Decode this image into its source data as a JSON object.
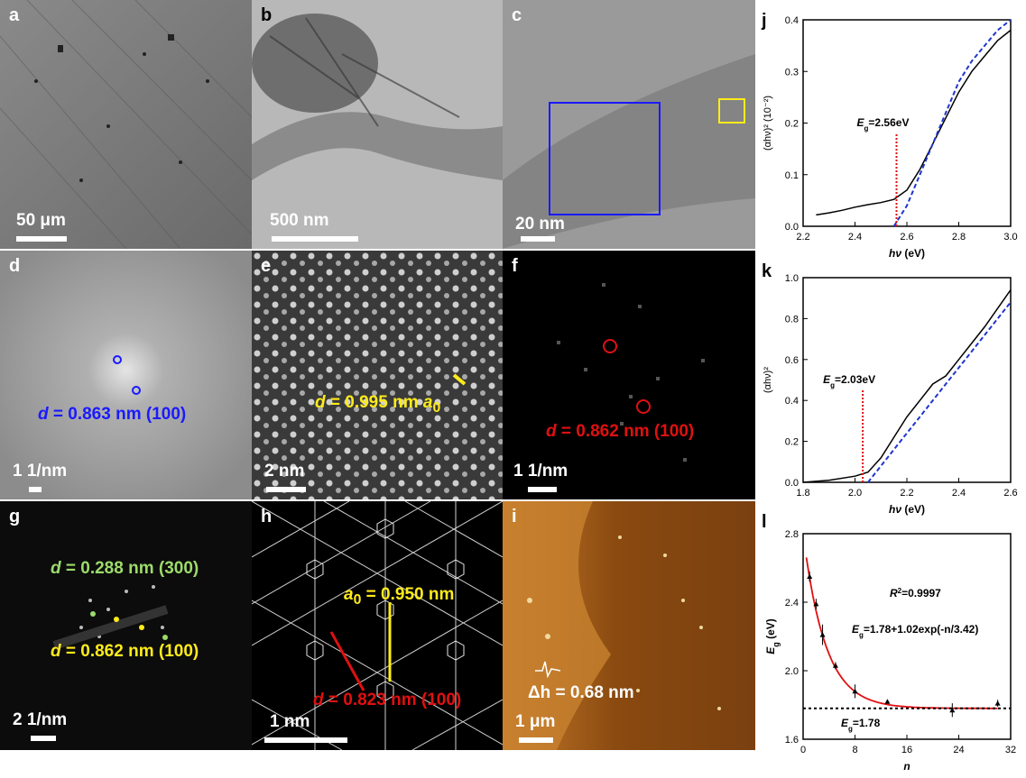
{
  "colors": {
    "blue": "#1a1aff",
    "yellow": "#ffeb1a",
    "red": "#e01010",
    "green": "#9ddb6a",
    "fit_blue": "#1f35d0",
    "fit_red": "#e01010"
  },
  "panels": {
    "a": {
      "label": "a",
      "scale": "50 μm"
    },
    "b": {
      "label": "b",
      "scale": "500 nm"
    },
    "c": {
      "label": "c",
      "scale": "20 nm"
    },
    "d": {
      "label": "d",
      "scale": "1  1/nm",
      "d_sym": "d",
      "d_val": " = 0.863 nm (100)"
    },
    "e": {
      "label": "e",
      "scale": "2 nm",
      "d_sym": "d",
      "d_val": " = 0.995 nm ",
      "a_sym": "a",
      "a_sub": "0"
    },
    "f": {
      "label": "f",
      "scale": "1  1/nm",
      "d_sym": "d",
      "d_val": " = 0.862 nm (100)"
    },
    "g": {
      "label": "g",
      "scale": "2  1/nm",
      "d1_sym": "d",
      "d1_val": " = 0.288 nm (300)",
      "d2_sym": "d",
      "d2_val": " = 0.862 nm (100)"
    },
    "h": {
      "label": "h",
      "scale": "1 nm",
      "a_sym": "a",
      "a_sub": "0",
      "a_val": " = 0.950 nm",
      "d_sym": "d",
      "d_val": " = 0.823 nm (100)"
    },
    "i": {
      "label": "i",
      "scale": "1 μm",
      "dh_sym": "Δh",
      "dh_val": " = 0.68 nm"
    }
  },
  "chart_data": [
    {
      "type": "line",
      "panel": "j",
      "x": [
        2.25,
        2.3,
        2.35,
        2.4,
        2.45,
        2.5,
        2.55,
        2.6,
        2.65,
        2.7,
        2.75,
        2.8,
        2.85,
        2.9,
        2.95,
        3.0
      ],
      "series": [
        {
          "values": [
            0.022,
            0.026,
            0.031,
            0.037,
            0.042,
            0.046,
            0.052,
            0.07,
            0.11,
            0.16,
            0.21,
            0.26,
            0.3,
            0.33,
            0.36,
            0.38
          ]
        },
        {
          "values": [
            null,
            null,
            null,
            null,
            null,
            null,
            0.0,
            0.04,
            0.1,
            0.16,
            0.22,
            0.28,
            0.32,
            0.35,
            0.38,
            0.41
          ]
        }
      ],
      "xlabel_sym": "hν",
      "xlabel_unit": " (eV)",
      "ylabel": "(αhν)² (10⁻²)",
      "xlim": [
        2.2,
        3.0
      ],
      "ylim": [
        0,
        0.4
      ],
      "xticks": [
        "2.2",
        "2.4",
        "2.6",
        "2.8",
        "3.0"
      ],
      "yticks": [
        "0.0",
        "0.1",
        "0.2",
        "0.3",
        "0.4"
      ],
      "marker": {
        "x": 2.56,
        "label_sym": "E",
        "label_sub": "g",
        "label_val": "=2.56eV"
      }
    },
    {
      "type": "line",
      "panel": "k",
      "x": [
        1.8,
        1.9,
        2.0,
        2.05,
        2.1,
        2.15,
        2.2,
        2.25,
        2.3,
        2.35,
        2.4,
        2.45,
        2.5,
        2.55,
        2.6
      ],
      "series": [
        {
          "values": [
            0.0,
            0.01,
            0.03,
            0.05,
            0.12,
            0.22,
            0.32,
            0.4,
            0.48,
            0.52,
            0.6,
            0.68,
            0.76,
            0.85,
            0.94
          ]
        },
        {
          "values": [
            null,
            null,
            null,
            0.0,
            0.08,
            0.16,
            0.24,
            0.32,
            0.4,
            0.48,
            0.56,
            0.64,
            0.72,
            0.8,
            0.88
          ]
        }
      ],
      "xlabel_sym": "hν",
      "xlabel_unit": " (eV)",
      "ylabel": "(αhν)²",
      "xlim": [
        1.8,
        2.6
      ],
      "ylim": [
        0,
        1.0
      ],
      "xticks": [
        "1.8",
        "2.0",
        "2.2",
        "2.4",
        "2.6"
      ],
      "yticks": [
        "0.0",
        "0.2",
        "0.4",
        "0.6",
        "0.8",
        "1.0"
      ],
      "marker": {
        "x": 2.03,
        "label_sym": "E",
        "label_sub": "g",
        "label_val": "=2.03eV"
      }
    },
    {
      "type": "scatter",
      "panel": "l",
      "x": [
        1,
        2,
        3,
        5,
        8,
        13,
        23,
        30
      ],
      "y": [
        2.55,
        2.39,
        2.21,
        2.03,
        1.88,
        1.82,
        1.77,
        1.81
      ],
      "err": [
        0.03,
        0.03,
        0.06,
        0.02,
        0.04,
        0.01,
        0.04,
        0.02
      ],
      "fit": {
        "eq_sym": "E",
        "eq_sub": "g",
        "eq_val": "=1.78+1.02exp(-n/3.42)",
        "a": 1.78,
        "b": 1.02,
        "t": 3.42
      },
      "baseline": {
        "value": 1.78,
        "label_sym": "E",
        "label_sub": "g",
        "label_val": "=1.78"
      },
      "r2_sym": "R",
      "r2_sup": "2",
      "r2_val": "=0.9997",
      "xlabel": "n",
      "ylabel_sym": "E",
      "ylabel_sub": "g",
      "ylabel_unit": " (eV)",
      "xlim": [
        0,
        32
      ],
      "ylim": [
        1.6,
        2.8
      ],
      "xticks": [
        "0",
        "8",
        "16",
        "24",
        "32"
      ],
      "yticks": [
        "1.6",
        "2.0",
        "2.4",
        "2.8"
      ]
    }
  ],
  "plot_labels": {
    "j": "j",
    "k": "k",
    "l": "l"
  }
}
